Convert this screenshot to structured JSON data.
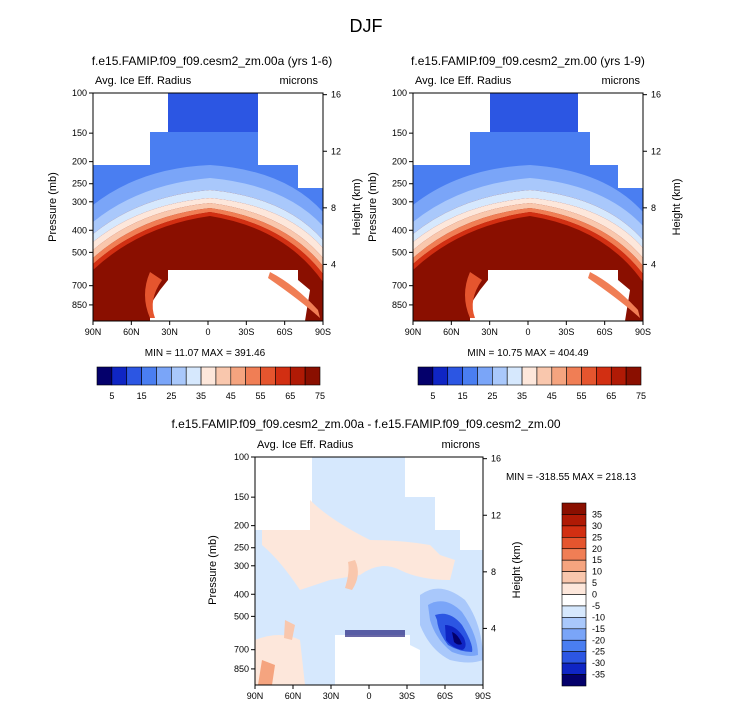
{
  "figure": {
    "main_title": "DJF"
  },
  "colors": {
    "sequential": [
      "#04006b",
      "#0f25c4",
      "#2c56e3",
      "#4a7ef1",
      "#7aa5f8",
      "#a9c8fb",
      "#d6e8fd",
      "#fde7db",
      "#f9c7ad",
      "#f5a47f",
      "#f07e55",
      "#e5552e",
      "#d22f12",
      "#b01a05",
      "#8a0f00"
    ],
    "difference": [
      "#04006b",
      "#0f25c4",
      "#2c56e3",
      "#4a7ef1",
      "#7aa5f8",
      "#a9c8fb",
      "#d6e8fd",
      "#ffffff",
      "#fde7db",
      "#f9c7ad",
      "#f5a47f",
      "#f07e55",
      "#e5552e",
      "#d22f12",
      "#b01a05",
      "#8a0f00"
    ]
  },
  "chart_data": [
    {
      "type": "heatmap",
      "id": "panel1",
      "title": "f.e15.FAMIP.f09_f09.cesm2_zm.00a (yrs 1-6)",
      "variable": "Avg. Ice Eff. Radius",
      "units": "microns",
      "xlabel": "",
      "ylabel": "Pressure (mb)",
      "ylabel_right": "Height (km)",
      "x_ticks": [
        "90N",
        "60N",
        "30N",
        "0",
        "30S",
        "60S",
        "90S"
      ],
      "y_ticks": [
        "100",
        "150",
        "200",
        "250",
        "300",
        "400",
        "500",
        "700",
        "850"
      ],
      "y_ticks_right": [
        "16",
        "12",
        "8",
        "4"
      ],
      "xlim": [
        90,
        -90
      ],
      "ylim_mb": [
        1000,
        100
      ],
      "min": 11.07,
      "max": 391.46,
      "stat_text": "MIN = 11.07  MAX = 391.46",
      "colorbar_labels": [
        "5",
        "15",
        "25",
        "35",
        "45",
        "55",
        "65",
        "75"
      ]
    },
    {
      "type": "heatmap",
      "id": "panel2",
      "title": "f.e15.FAMIP.f09_f09.cesm2_zm.00 (yrs 1-9)",
      "variable": "Avg. Ice Eff. Radius",
      "units": "microns",
      "xlabel": "",
      "ylabel": "Pressure (mb)",
      "ylabel_right": "Height (km)",
      "x_ticks": [
        "90N",
        "60N",
        "30N",
        "0",
        "30S",
        "60S",
        "90S"
      ],
      "y_ticks": [
        "100",
        "150",
        "200",
        "250",
        "300",
        "400",
        "500",
        "700",
        "850"
      ],
      "y_ticks_right": [
        "16",
        "12",
        "8",
        "4"
      ],
      "xlim": [
        90,
        -90
      ],
      "ylim_mb": [
        1000,
        100
      ],
      "min": 10.75,
      "max": 404.49,
      "stat_text": "MIN = 10.75  MAX = 404.49",
      "colorbar_labels": [
        "5",
        "15",
        "25",
        "35",
        "45",
        "55",
        "65",
        "75"
      ]
    },
    {
      "type": "heatmap",
      "id": "panel3",
      "title": "f.e15.FAMIP.f09_f09.cesm2_zm.00a - f.e15.FAMIP.f09_f09.cesm2_zm.00",
      "variable": "Avg. Ice Eff. Radius",
      "units": "microns",
      "xlabel": "",
      "ylabel": "Pressure (mb)",
      "ylabel_right": "Height (km)",
      "x_ticks": [
        "90N",
        "60N",
        "30N",
        "0",
        "30S",
        "60S",
        "90S"
      ],
      "y_ticks": [
        "100",
        "150",
        "200",
        "250",
        "300",
        "400",
        "500",
        "700",
        "850"
      ],
      "y_ticks_right": [
        "16",
        "12",
        "8",
        "4"
      ],
      "xlim": [
        90,
        -90
      ],
      "ylim_mb": [
        1000,
        100
      ],
      "min": -318.55,
      "max": 218.13,
      "stat_text": "MIN = -318.55  MAX = 218.13",
      "colorbar_labels": [
        "35",
        "30",
        "25",
        "20",
        "15",
        "10",
        "5",
        "0",
        "-5",
        "-10",
        "-15",
        "-20",
        "-25",
        "-30",
        "-35"
      ]
    }
  ]
}
